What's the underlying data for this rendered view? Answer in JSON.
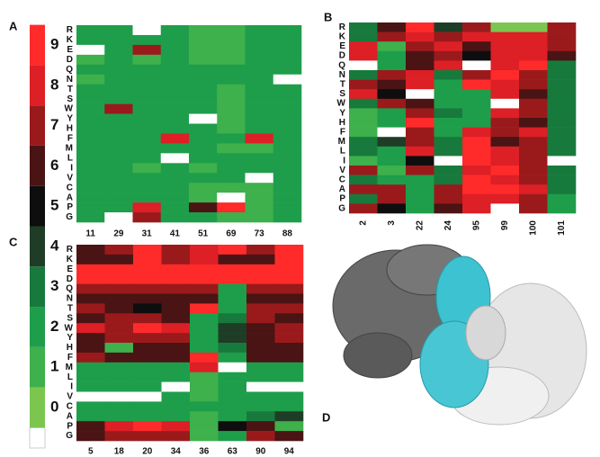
{
  "panel_labels": [
    "A",
    "B",
    "C",
    "D"
  ],
  "chart_data": [
    {
      "type": "colorbar",
      "ticks": [
        0,
        1,
        2,
        3,
        4,
        5,
        6,
        7,
        8,
        9
      ],
      "colors": [
        "#7cc650",
        "#3eb04c",
        "#1e9e4a",
        "#177a3c",
        "#1f3d26",
        "#0e0e0e",
        "#4a1414",
        "#9a1a1c",
        "#dd1f26",
        "#ff2a2a"
      ],
      "null_color": "#ffffff"
    },
    {
      "type": "heatmap",
      "x": [
        "11",
        "29",
        "31",
        "41",
        "51",
        "69",
        "73",
        "88"
      ],
      "y": [
        "R",
        "K",
        "E",
        "D",
        "Q",
        "N",
        "T",
        "S",
        "W",
        "Y",
        "H",
        "F",
        "M",
        "L",
        "I",
        "V",
        "C",
        "A",
        "P",
        "G"
      ],
      "values": [
        [
          2,
          2,
          null,
          2,
          1,
          1,
          2,
          2
        ],
        [
          2,
          2,
          2,
          2,
          1,
          1,
          2,
          2
        ],
        [
          null,
          2,
          7,
          2,
          1,
          1,
          2,
          2
        ],
        [
          1,
          2,
          1,
          2,
          1,
          1,
          2,
          2
        ],
        [
          2,
          2,
          2,
          2,
          2,
          2,
          2,
          2
        ],
        [
          1,
          2,
          2,
          2,
          2,
          2,
          2,
          null
        ],
        [
          2,
          2,
          2,
          2,
          2,
          1,
          2,
          2
        ],
        [
          2,
          2,
          2,
          2,
          2,
          1,
          2,
          2
        ],
        [
          2,
          7,
          2,
          2,
          2,
          1,
          2,
          2
        ],
        [
          2,
          2,
          2,
          2,
          null,
          1,
          2,
          2
        ],
        [
          2,
          2,
          2,
          2,
          2,
          1,
          2,
          2
        ],
        [
          2,
          2,
          2,
          8,
          2,
          2,
          8,
          2
        ],
        [
          2,
          2,
          2,
          2,
          2,
          1,
          1,
          2
        ],
        [
          2,
          2,
          2,
          null,
          2,
          2,
          2,
          2
        ],
        [
          2,
          2,
          1,
          2,
          1,
          2,
          2,
          2
        ],
        [
          2,
          2,
          2,
          2,
          2,
          2,
          null,
          2
        ],
        [
          2,
          2,
          2,
          2,
          1,
          1,
          1,
          2
        ],
        [
          2,
          2,
          2,
          2,
          1,
          null,
          1,
          2
        ],
        [
          2,
          2,
          8,
          2,
          6,
          9,
          1,
          2
        ],
        [
          2,
          null,
          7,
          2,
          2,
          1,
          1,
          2
        ]
      ]
    },
    {
      "type": "heatmap",
      "x": [
        "2",
        "3",
        "22",
        "24",
        "95",
        "99",
        "100",
        "101"
      ],
      "y": [
        "R",
        "K",
        "E",
        "D",
        "Q",
        "N",
        "T",
        "S",
        "W",
        "Y",
        "H",
        "F",
        "M",
        "L",
        "I",
        "V",
        "C",
        "A",
        "P",
        "G"
      ],
      "values": [
        [
          3,
          6,
          9,
          4,
          7,
          0,
          0,
          7
        ],
        [
          3,
          7,
          8,
          7,
          8,
          8,
          8,
          7
        ],
        [
          8,
          1,
          7,
          8,
          6,
          8,
          8,
          7
        ],
        [
          8,
          2,
          6,
          7,
          5,
          8,
          8,
          6
        ],
        [
          null,
          2,
          6,
          8,
          null,
          8,
          9,
          3
        ],
        [
          3,
          7,
          8,
          3,
          7,
          9,
          7,
          3
        ],
        [
          7,
          6,
          8,
          2,
          9,
          8,
          7,
          3
        ],
        [
          8,
          5,
          null,
          2,
          2,
          8,
          6,
          3
        ],
        [
          3,
          7,
          6,
          2,
          2,
          null,
          7,
          3
        ],
        [
          1,
          2,
          7,
          3,
          2,
          8,
          7,
          3
        ],
        [
          1,
          2,
          9,
          2,
          2,
          7,
          6,
          3
        ],
        [
          1,
          null,
          7,
          2,
          8,
          7,
          8,
          3
        ],
        [
          3,
          4,
          7,
          3,
          9,
          6,
          7,
          3
        ],
        [
          3,
          2,
          8,
          3,
          9,
          8,
          7,
          3
        ],
        [
          1,
          2,
          5,
          null,
          9,
          8,
          7,
          null
        ],
        [
          7,
          1,
          7,
          3,
          8,
          9,
          7,
          3
        ],
        [
          3,
          2,
          2,
          3,
          9,
          8,
          7,
          3
        ],
        [
          7,
          7,
          2,
          7,
          9,
          9,
          8,
          3
        ],
        [
          3,
          7,
          2,
          7,
          8,
          8,
          7,
          2
        ],
        [
          7,
          5,
          2,
          6,
          8,
          null,
          7,
          2
        ]
      ]
    },
    {
      "type": "heatmap",
      "x": [
        "5",
        "18",
        "20",
        "34",
        "36",
        "63",
        "90",
        "94"
      ],
      "y": [
        "R",
        "K",
        "E",
        "D",
        "Q",
        "N",
        "T",
        "S",
        "W",
        "Y",
        "H",
        "F",
        "M",
        "L",
        "I",
        "V",
        "C",
        "A",
        "P",
        "G"
      ],
      "values": [
        [
          6,
          7,
          9,
          7,
          8,
          9,
          7,
          9
        ],
        [
          6,
          6,
          9,
          7,
          8,
          6,
          6,
          9
        ],
        [
          9,
          9,
          9,
          9,
          9,
          9,
          9,
          9
        ],
        [
          9,
          9,
          9,
          9,
          9,
          9,
          9,
          9
        ],
        [
          7,
          7,
          7,
          7,
          7,
          2,
          7,
          7
        ],
        [
          6,
          6,
          6,
          6,
          6,
          2,
          6,
          6
        ],
        [
          7,
          6,
          5,
          6,
          9,
          2,
          7,
          7
        ],
        [
          6,
          7,
          7,
          6,
          2,
          3,
          7,
          6
        ],
        [
          8,
          7,
          9,
          8,
          2,
          4,
          6,
          7
        ],
        [
          6,
          7,
          7,
          7,
          2,
          4,
          6,
          7
        ],
        [
          6,
          1,
          6,
          6,
          2,
          3,
          6,
          6
        ],
        [
          7,
          6,
          6,
          6,
          9,
          2,
          6,
          6
        ],
        [
          2,
          2,
          2,
          2,
          8,
          null,
          2,
          2
        ],
        [
          2,
          2,
          2,
          2,
          1,
          2,
          2,
          2
        ],
        [
          2,
          2,
          2,
          null,
          1,
          2,
          null,
          null
        ],
        [
          null,
          null,
          null,
          2,
          1,
          2,
          2,
          2
        ],
        [
          2,
          2,
          2,
          2,
          2,
          2,
          2,
          2
        ],
        [
          2,
          2,
          2,
          2,
          1,
          2,
          3,
          4
        ],
        [
          6,
          8,
          9,
          8,
          1,
          5,
          6,
          1
        ],
        [
          6,
          7,
          7,
          7,
          1,
          2,
          7,
          6
        ]
      ]
    }
  ]
}
